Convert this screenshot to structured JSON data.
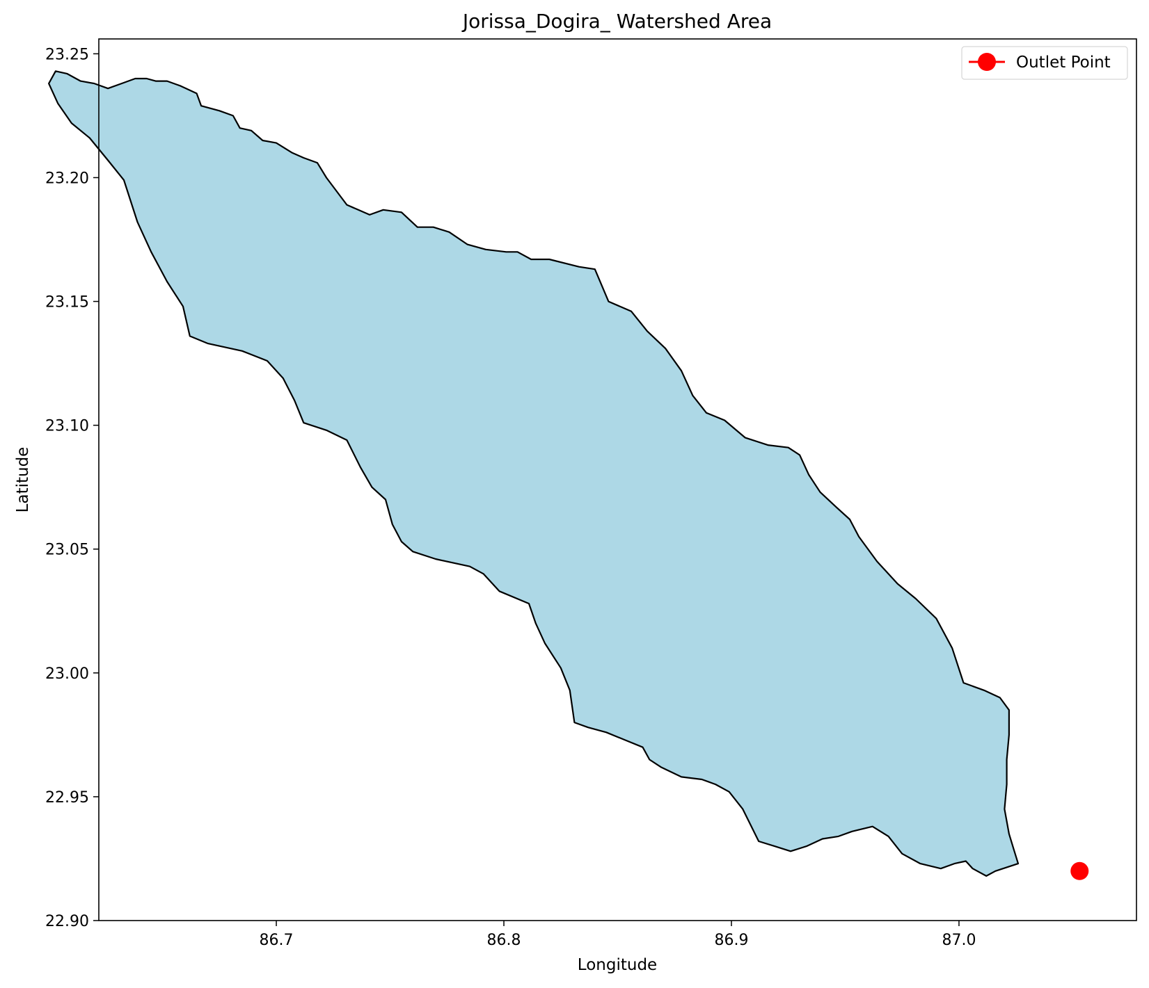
{
  "chart_data": {
    "type": "map",
    "title": "Jorissa_Dogira_ Watershed Area",
    "xlabel": "Longitude",
    "ylabel": "Latitude",
    "xlim": [
      86.622,
      87.078
    ],
    "ylim": [
      22.9,
      23.256
    ],
    "x_ticks": [
      {
        "value": 86.7,
        "label": "86.7"
      },
      {
        "value": 86.8,
        "label": "86.8"
      },
      {
        "value": 86.9,
        "label": "86.9"
      },
      {
        "value": 87.0,
        "label": "87.0"
      }
    ],
    "y_ticks": [
      {
        "value": 22.9,
        "label": "22.90"
      },
      {
        "value": 22.95,
        "label": "22.95"
      },
      {
        "value": 23.0,
        "label": "23.00"
      },
      {
        "value": 23.05,
        "label": "23.05"
      },
      {
        "value": 23.1,
        "label": "23.10"
      },
      {
        "value": 23.15,
        "label": "23.15"
      },
      {
        "value": 23.2,
        "label": "23.20"
      },
      {
        "value": 23.25,
        "label": "23.25"
      }
    ],
    "grid": false,
    "legend_position": "top-right",
    "watershed": {
      "fill_color": "#add8e6",
      "edge_color": "#000000",
      "boundary": [
        [
          86.647,
          23.239
        ],
        [
          86.652,
          23.239
        ],
        [
          86.658,
          23.237
        ],
        [
          86.665,
          23.234
        ],
        [
          86.667,
          23.229
        ],
        [
          86.675,
          23.227
        ],
        [
          86.681,
          23.225
        ],
        [
          86.684,
          23.22
        ],
        [
          86.689,
          23.219
        ],
        [
          86.694,
          23.215
        ],
        [
          86.7,
          23.214
        ],
        [
          86.707,
          23.21
        ],
        [
          86.712,
          23.208
        ],
        [
          86.718,
          23.206
        ],
        [
          86.722,
          23.2
        ],
        [
          86.731,
          23.189
        ],
        [
          86.736,
          23.187
        ],
        [
          86.741,
          23.185
        ],
        [
          86.747,
          23.187
        ],
        [
          86.755,
          23.186
        ],
        [
          86.762,
          23.18
        ],
        [
          86.769,
          23.18
        ],
        [
          86.776,
          23.178
        ],
        [
          86.784,
          23.173
        ],
        [
          86.792,
          23.171
        ],
        [
          86.801,
          23.17
        ],
        [
          86.806,
          23.17
        ],
        [
          86.812,
          23.167
        ],
        [
          86.82,
          23.167
        ],
        [
          86.833,
          23.164
        ],
        [
          86.84,
          23.163
        ],
        [
          86.846,
          23.15
        ],
        [
          86.856,
          23.146
        ],
        [
          86.863,
          23.138
        ],
        [
          86.871,
          23.131
        ],
        [
          86.878,
          23.122
        ],
        [
          86.883,
          23.112
        ],
        [
          86.889,
          23.105
        ],
        [
          86.897,
          23.102
        ],
        [
          86.906,
          23.095
        ],
        [
          86.916,
          23.092
        ],
        [
          86.925,
          23.091
        ],
        [
          86.93,
          23.088
        ],
        [
          86.934,
          23.08
        ],
        [
          86.939,
          23.073
        ],
        [
          86.946,
          23.067
        ],
        [
          86.952,
          23.062
        ],
        [
          86.956,
          23.055
        ],
        [
          86.964,
          23.045
        ],
        [
          86.973,
          23.036
        ],
        [
          86.981,
          23.03
        ],
        [
          86.99,
          23.022
        ],
        [
          86.997,
          23.01
        ],
        [
          87.002,
          22.996
        ],
        [
          87.011,
          22.993
        ],
        [
          87.018,
          22.99
        ],
        [
          87.022,
          22.985
        ],
        [
          87.022,
          22.975
        ],
        [
          87.021,
          22.965
        ],
        [
          87.021,
          22.955
        ],
        [
          87.02,
          22.945
        ],
        [
          87.022,
          22.935
        ],
        [
          87.024,
          22.929
        ],
        [
          87.026,
          22.923
        ],
        [
          87.016,
          22.92
        ],
        [
          87.012,
          22.918
        ],
        [
          87.006,
          22.921
        ],
        [
          87.003,
          22.924
        ],
        [
          86.998,
          22.923
        ],
        [
          86.992,
          22.921
        ],
        [
          86.983,
          22.923
        ],
        [
          86.975,
          22.927
        ],
        [
          86.969,
          22.934
        ],
        [
          86.962,
          22.938
        ],
        [
          86.953,
          22.936
        ],
        [
          86.947,
          22.934
        ],
        [
          86.94,
          22.933
        ],
        [
          86.933,
          22.93
        ],
        [
          86.926,
          22.928
        ],
        [
          86.919,
          22.93
        ],
        [
          86.912,
          22.932
        ],
        [
          86.905,
          22.945
        ],
        [
          86.899,
          22.952
        ],
        [
          86.893,
          22.955
        ],
        [
          86.887,
          22.957
        ],
        [
          86.878,
          22.958
        ],
        [
          86.869,
          22.962
        ],
        [
          86.864,
          22.965
        ],
        [
          86.861,
          22.97
        ],
        [
          86.853,
          22.973
        ],
        [
          86.845,
          22.976
        ],
        [
          86.837,
          22.978
        ],
        [
          86.831,
          22.98
        ],
        [
          86.829,
          22.993
        ],
        [
          86.825,
          23.002
        ],
        [
          86.818,
          23.012
        ],
        [
          86.814,
          23.02
        ],
        [
          86.811,
          23.028
        ],
        [
          86.798,
          23.033
        ],
        [
          86.791,
          23.04
        ],
        [
          86.785,
          23.043
        ],
        [
          86.77,
          23.046
        ],
        [
          86.76,
          23.049
        ],
        [
          86.755,
          23.053
        ],
        [
          86.751,
          23.06
        ],
        [
          86.748,
          23.07
        ],
        [
          86.742,
          23.075
        ],
        [
          86.737,
          23.083
        ],
        [
          86.731,
          23.094
        ],
        [
          86.722,
          23.098
        ],
        [
          86.712,
          23.101
        ],
        [
          86.708,
          23.11
        ],
        [
          86.703,
          23.119
        ],
        [
          86.696,
          23.126
        ],
        [
          86.685,
          23.13
        ],
        [
          86.67,
          23.133
        ],
        [
          86.662,
          23.136
        ],
        [
          86.659,
          23.148
        ],
        [
          86.652,
          23.158
        ],
        [
          86.645,
          23.17
        ],
        [
          86.639,
          23.182
        ],
        [
          86.633,
          23.199
        ],
        [
          86.626,
          23.207
        ],
        [
          86.618,
          23.216
        ],
        [
          86.61,
          23.222
        ],
        [
          86.604,
          23.23
        ],
        [
          86.6,
          23.238
        ],
        [
          86.603,
          23.243
        ],
        [
          86.608,
          23.242
        ],
        [
          86.614,
          23.239
        ],
        [
          86.62,
          23.238
        ],
        [
          86.626,
          23.236
        ],
        [
          86.632,
          23.238
        ],
        [
          86.638,
          23.24
        ],
        [
          86.643,
          23.24
        ],
        [
          86.647,
          23.239
        ]
      ]
    },
    "outlet_point": {
      "x": 87.053,
      "y": 22.92,
      "color": "#ff0000"
    },
    "legend": [
      {
        "label": "Outlet Point",
        "color": "#ff0000",
        "marker": "circle-line"
      }
    ]
  }
}
